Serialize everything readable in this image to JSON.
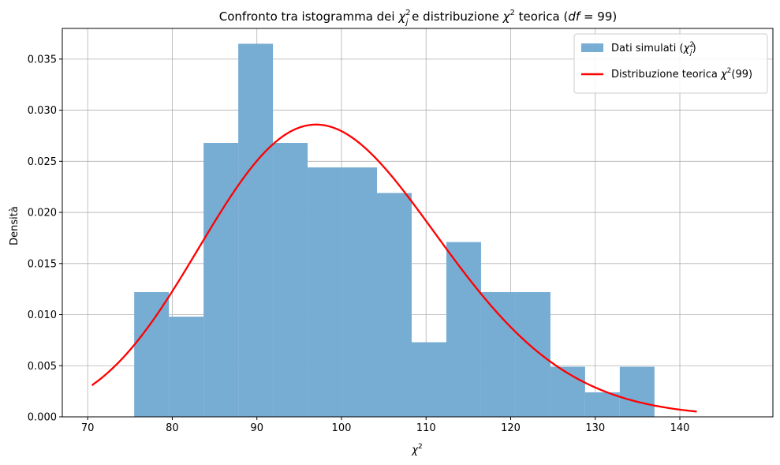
{
  "chart_data": {
    "type": "bar",
    "title_parts": {
      "prefix": "Confronto tra istogramma dei ",
      "sym": "χ",
      "sup": "2",
      "sub": "j",
      "middle": " e distribuzione ",
      "sym2": "χ",
      "sup2": "2",
      "suffix": " teorica (",
      "df_var": "df",
      "df_eq": " = 99",
      "close": ")"
    },
    "xlabel": {
      "sym": "χ",
      "sup": "2"
    },
    "ylabel": "Densità",
    "xlim": [
      67,
      151
    ],
    "ylim": [
      0,
      0.038
    ],
    "x_ticks": [
      70,
      80,
      90,
      100,
      110,
      120,
      130,
      140
    ],
    "y_ticks": [
      0.0,
      0.005,
      0.01,
      0.015,
      0.02,
      0.025,
      0.03,
      0.035
    ],
    "y_tick_labels": [
      "0.000",
      "0.005",
      "0.010",
      "0.015",
      "0.020",
      "0.025",
      "0.030",
      "0.035"
    ],
    "grid": true,
    "legend_position": "top-right",
    "histogram": {
      "name_prefix": "Dati simulati (",
      "name_sym": "χ",
      "name_sup": "2",
      "name_sub": "j",
      "name_suffix": ")",
      "color": "#77acd3",
      "bin_edges": [
        75.5,
        79.6,
        83.7,
        87.8,
        91.9,
        96.0,
        100.1,
        104.2,
        108.3,
        112.4,
        116.5,
        120.6,
        124.7,
        128.8,
        132.9,
        137.0
      ],
      "density": [
        0.0122,
        0.0098,
        0.0268,
        0.0365,
        0.0268,
        0.0244,
        0.0244,
        0.0219,
        0.0073,
        0.0171,
        0.0122,
        0.0122,
        0.0049,
        0.0024,
        0.0049
      ]
    },
    "theoretical": {
      "name_prefix": "Distribuzione teorica ",
      "name_sym": "χ",
      "name_sup": "2",
      "name_suffix": "(99)",
      "df": 99,
      "color": "#ff0000",
      "x_range": [
        70.5,
        142.0
      ],
      "sample_x": [
        70.5,
        75,
        80,
        85,
        90,
        95,
        97,
        100,
        105,
        110,
        115,
        120,
        125,
        130,
        135,
        142
      ],
      "sample_y": [
        0.0031,
        0.0064,
        0.0122,
        0.0193,
        0.0254,
        0.0284,
        0.0286,
        0.028,
        0.0249,
        0.0201,
        0.0148,
        0.0101,
        0.0064,
        0.0038,
        0.0021,
        0.0006
      ]
    }
  }
}
